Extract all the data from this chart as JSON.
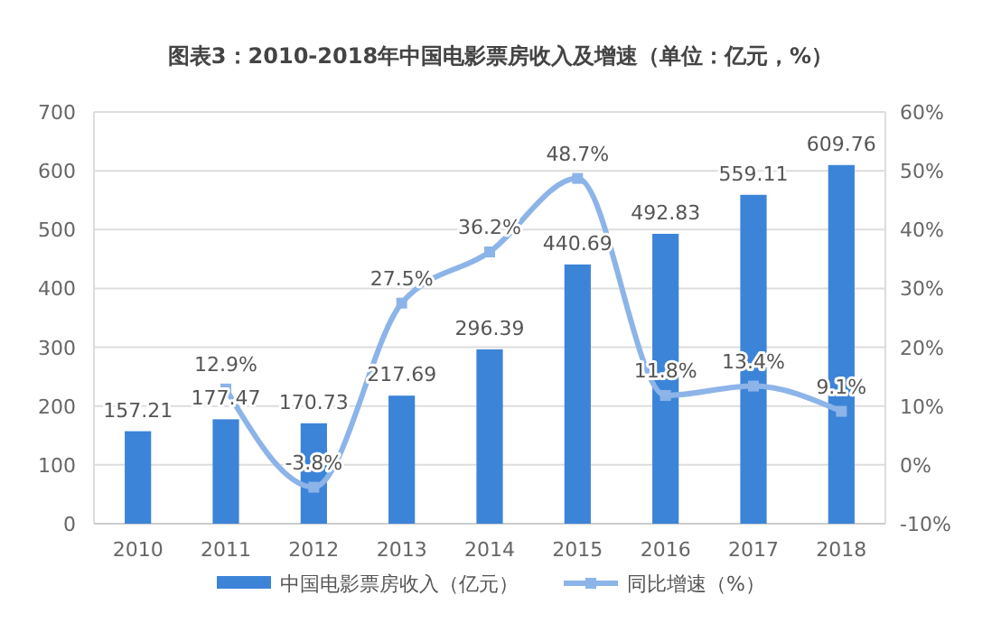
{
  "chart_data": {
    "type": "bar",
    "title": "图表3：2010-2018年中国电影票房收入及增速（单位：亿元，%）",
    "categories": [
      "2010",
      "2011",
      "2012",
      "2013",
      "2014",
      "2015",
      "2016",
      "2017",
      "2018"
    ],
    "series": [
      {
        "name": "中国电影票房收入（亿元）",
        "color": "#3c84d8",
        "values": [
          157.21,
          177.47,
          170.73,
          217.69,
          296.39,
          440.69,
          492.83,
          559.11,
          609.76
        ],
        "value_labels": [
          "157.21",
          "177.47",
          "170.73",
          "217.69",
          "296.39",
          "440.69",
          "492.83",
          "559.11",
          "609.76"
        ]
      },
      {
        "name": "同比增速（%）",
        "type": "line",
        "axis": "y2",
        "color": "#8cb4e8",
        "values": [
          null,
          12.9,
          -3.8,
          27.5,
          36.2,
          48.7,
          11.8,
          13.4,
          9.1
        ],
        "value_labels": [
          null,
          "12.9%",
          "-3.8%",
          "27.5%",
          "36.2%",
          "48.7%",
          "11.8%",
          "13.4%",
          "9.1%"
        ]
      }
    ],
    "ylim": [
      0,
      700
    ],
    "yticks": [
      0,
      100,
      200,
      300,
      400,
      500,
      600,
      700
    ],
    "y2lim": [
      -10,
      60
    ],
    "y2ticks": [
      {
        "value": -10,
        "label": "-10%"
      },
      {
        "value": 0,
        "label": "0%"
      },
      {
        "value": 10,
        "label": "10%"
      },
      {
        "value": 20,
        "label": "20%"
      },
      {
        "value": 30,
        "label": "30%"
      },
      {
        "value": 40,
        "label": "40%"
      },
      {
        "value": 50,
        "label": "50%"
      },
      {
        "value": 60,
        "label": "60%"
      }
    ],
    "grid": "y",
    "legend": "bottom",
    "marker": "square",
    "line_style": "solid"
  }
}
